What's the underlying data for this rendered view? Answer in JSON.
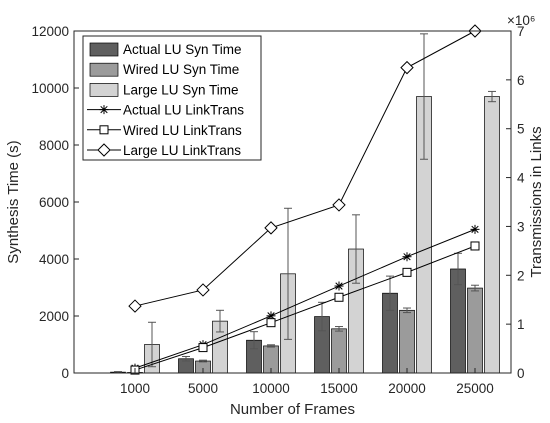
{
  "chart_data": {
    "type": "bar",
    "categories": [
      "1000",
      "5000",
      "10000",
      "15000",
      "20000",
      "25000"
    ],
    "xlabel": "Number of Frames",
    "ylabel_left": "Synthesis Time (s)",
    "ylabel_right": "Transmissions in Links",
    "ylim_left": [
      0,
      12000
    ],
    "ylim_right": [
      0,
      7
    ],
    "yticks_left": [
      "0",
      "2000",
      "4000",
      "6000",
      "8000",
      "10000",
      "12000"
    ],
    "yticks_right": [
      "0",
      "1",
      "2",
      "3",
      "4",
      "5",
      "6",
      "7"
    ],
    "right_exponent": "×10⁶",
    "legend_position": "top-left",
    "bar_series": [
      {
        "name": "Actual LU Syn Time",
        "color": "#5f5f5f",
        "values": [
          30,
          500,
          1150,
          1980,
          2800,
          3650
        ],
        "err": [
          20,
          80,
          300,
          500,
          600,
          550
        ]
      },
      {
        "name": "Wired LU Syn Time",
        "color": "#9b9b9b",
        "values": [
          20,
          420,
          950,
          1550,
          2200,
          2980
        ],
        "err": [
          10,
          30,
          40,
          80,
          80,
          100
        ]
      },
      {
        "name": "Large LU Syn Time",
        "color": "#d3d3d3",
        "values": [
          1000,
          1820,
          3480,
          4350,
          9700,
          9700
        ],
        "err": [
          780,
          380,
          2300,
          1200,
          2200,
          180
        ]
      }
    ],
    "line_series": [
      {
        "name": "Actual LU LinkTrans",
        "marker": "star",
        "values": [
          0.1,
          0.58,
          1.17,
          1.78,
          2.38,
          2.94
        ]
      },
      {
        "name": "Wired LU LinkTrans",
        "marker": "square",
        "values": [
          0.06,
          0.52,
          1.03,
          1.55,
          2.06,
          2.6
        ]
      },
      {
        "name": "Large LU LinkTrans",
        "marker": "diamond",
        "values": [
          1.37,
          1.7,
          2.97,
          3.44,
          6.25,
          7.0
        ]
      }
    ]
  }
}
